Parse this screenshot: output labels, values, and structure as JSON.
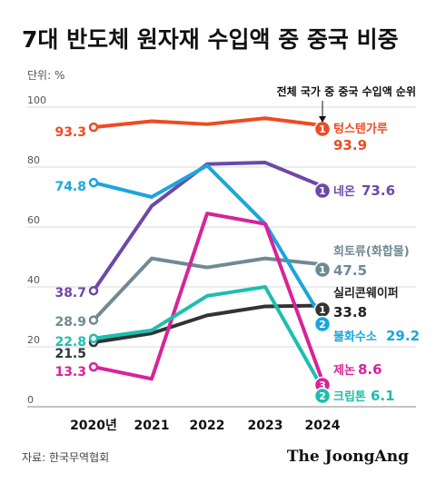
{
  "header": {
    "title": "7대 반도체 원자재 수입액 중 중국 비중",
    "unit": "단위: %",
    "rank_note": "전체 국가 중 중국 수입액 순위"
  },
  "footer": {
    "source": "자료: 한국무역협회",
    "brand": "The JoongAng"
  },
  "chart_data": {
    "type": "line",
    "x": [
      "2020년",
      "2021",
      "2022",
      "2023",
      "2024"
    ],
    "ylim": [
      0,
      100
    ],
    "yticks": [
      "0",
      "20",
      "40",
      "60",
      "80",
      "100"
    ],
    "series": [
      {
        "name": "텅스텐가루",
        "color": "#ee4b23",
        "values": [
          93.3,
          95.3,
          94.3,
          96.3,
          93.9
        ],
        "start_label": "93.3",
        "end_label": "93.9",
        "rank": "1",
        "rank_color": "#ee4b23"
      },
      {
        "name": "네온",
        "color": "#6d49a6",
        "values": [
          38.7,
          67,
          81,
          81.5,
          73.6
        ],
        "start_label": "38.7",
        "end_label": "73.6",
        "rank": "1",
        "rank_color": "#6d49a6"
      },
      {
        "name": "희토류(화합물)",
        "color": "#6f8a94",
        "values": [
          28.9,
          49.5,
          46.5,
          49.5,
          47.5
        ],
        "start_label": "28.9",
        "end_label": "47.5",
        "rank": "1",
        "rank_color": "#6f8a94"
      },
      {
        "name": "실리콘웨이퍼",
        "color": "#333333",
        "values": [
          21.5,
          24.5,
          30.5,
          33.5,
          33.8
        ],
        "start_label": "21.5",
        "end_label": "33.8",
        "rank": "1",
        "rank_color": "#333333"
      },
      {
        "name": "불화수소",
        "color": "#1aa6dd",
        "values": [
          74.8,
          70,
          80.5,
          61,
          29.2
        ],
        "start_label": "74.8",
        "end_label": "29.2",
        "rank": "2",
        "rank_color": "#1aa6dd"
      },
      {
        "name": "제논",
        "color": "#d8239a",
        "values": [
          13.3,
          9.3,
          64.5,
          61,
          8.6
        ],
        "start_label": "13.3",
        "end_label": "8.6",
        "rank": "3",
        "rank_color": "#d8239a"
      },
      {
        "name": "크립톤",
        "color": "#1ebeae",
        "values": [
          22.8,
          25.5,
          37,
          40,
          6.1
        ],
        "start_label": "22.8",
        "end_label": "6.1",
        "rank": "2",
        "rank_color": "#1ebeae"
      }
    ]
  }
}
